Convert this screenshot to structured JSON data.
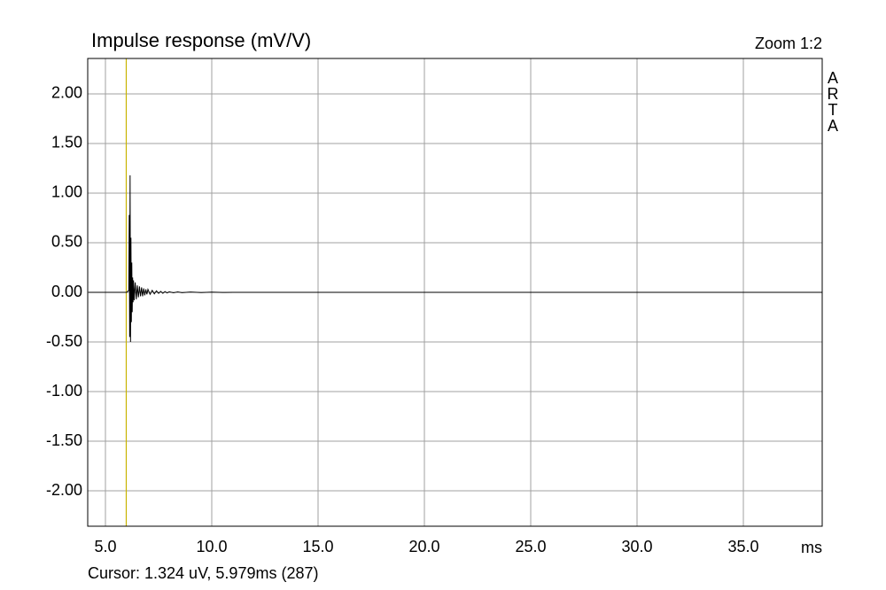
{
  "chart_data": {
    "type": "line",
    "title": "Impulse response (mV/V)",
    "zoom_label": "Zoom 1:2",
    "watermark": "ARTA",
    "x_unit": "ms",
    "cursor": {
      "label": "Cursor: 1.324 uV, 5.979ms (287)",
      "x": 5.979,
      "color": "#c8b400"
    },
    "x": [
      4.2,
      6.0,
      6.1,
      6.12,
      6.14,
      6.16,
      6.18,
      6.2,
      6.22,
      6.24,
      6.26,
      6.28,
      6.3,
      6.32,
      6.35,
      6.4,
      6.45,
      6.5,
      6.55,
      6.6,
      6.65,
      6.7,
      6.75,
      6.8,
      6.85,
      6.9,
      6.95,
      7.0,
      7.1,
      7.2,
      7.3,
      7.4,
      7.5,
      7.6,
      7.7,
      7.8,
      7.9,
      8.0,
      8.2,
      8.4,
      8.6,
      9.0,
      9.5,
      10.0,
      10.5,
      11.0,
      38.7
    ],
    "values": [
      0,
      0,
      0.02,
      0.78,
      -0.45,
      1.18,
      -0.5,
      0.55,
      -0.3,
      0.3,
      -0.2,
      0.15,
      -0.1,
      0.12,
      -0.08,
      0.1,
      -0.07,
      0.07,
      -0.05,
      0.06,
      -0.04,
      0.05,
      -0.04,
      0.04,
      -0.03,
      0.03,
      -0.02,
      0.03,
      -0.02,
      0.02,
      -0.015,
      0.015,
      -0.01,
      0.01,
      -0.01,
      0.008,
      -0.006,
      0.005,
      -0.004,
      0.004,
      -0.003,
      0.003,
      -0.002,
      0.002,
      -0.001,
      0,
      0
    ],
    "color": "#000000",
    "xlim": [
      4.167,
      38.708
    ],
    "ylim": [
      -2.357,
      2.357
    ],
    "xticks": [
      {
        "value": 5,
        "label": "5.0"
      },
      {
        "value": 10,
        "label": "10.0"
      },
      {
        "value": 15,
        "label": "15.0"
      },
      {
        "value": 20,
        "label": "20.0"
      },
      {
        "value": 25,
        "label": "25.0"
      },
      {
        "value": 30,
        "label": "30.0"
      },
      {
        "value": 35,
        "label": "35.0"
      }
    ],
    "yticks": [
      {
        "value": 2,
        "label": "2.00"
      },
      {
        "value": 1.5,
        "label": "1.50"
      },
      {
        "value": 1,
        "label": "1.00"
      },
      {
        "value": 0.5,
        "label": "0.50"
      },
      {
        "value": 0,
        "label": "0.00"
      },
      {
        "value": -0.5,
        "label": "-0.50"
      },
      {
        "value": -1,
        "label": "-1.00"
      },
      {
        "value": -1.5,
        "label": "-1.50"
      },
      {
        "value": -2,
        "label": "-2.00"
      }
    ],
    "grid": true
  }
}
